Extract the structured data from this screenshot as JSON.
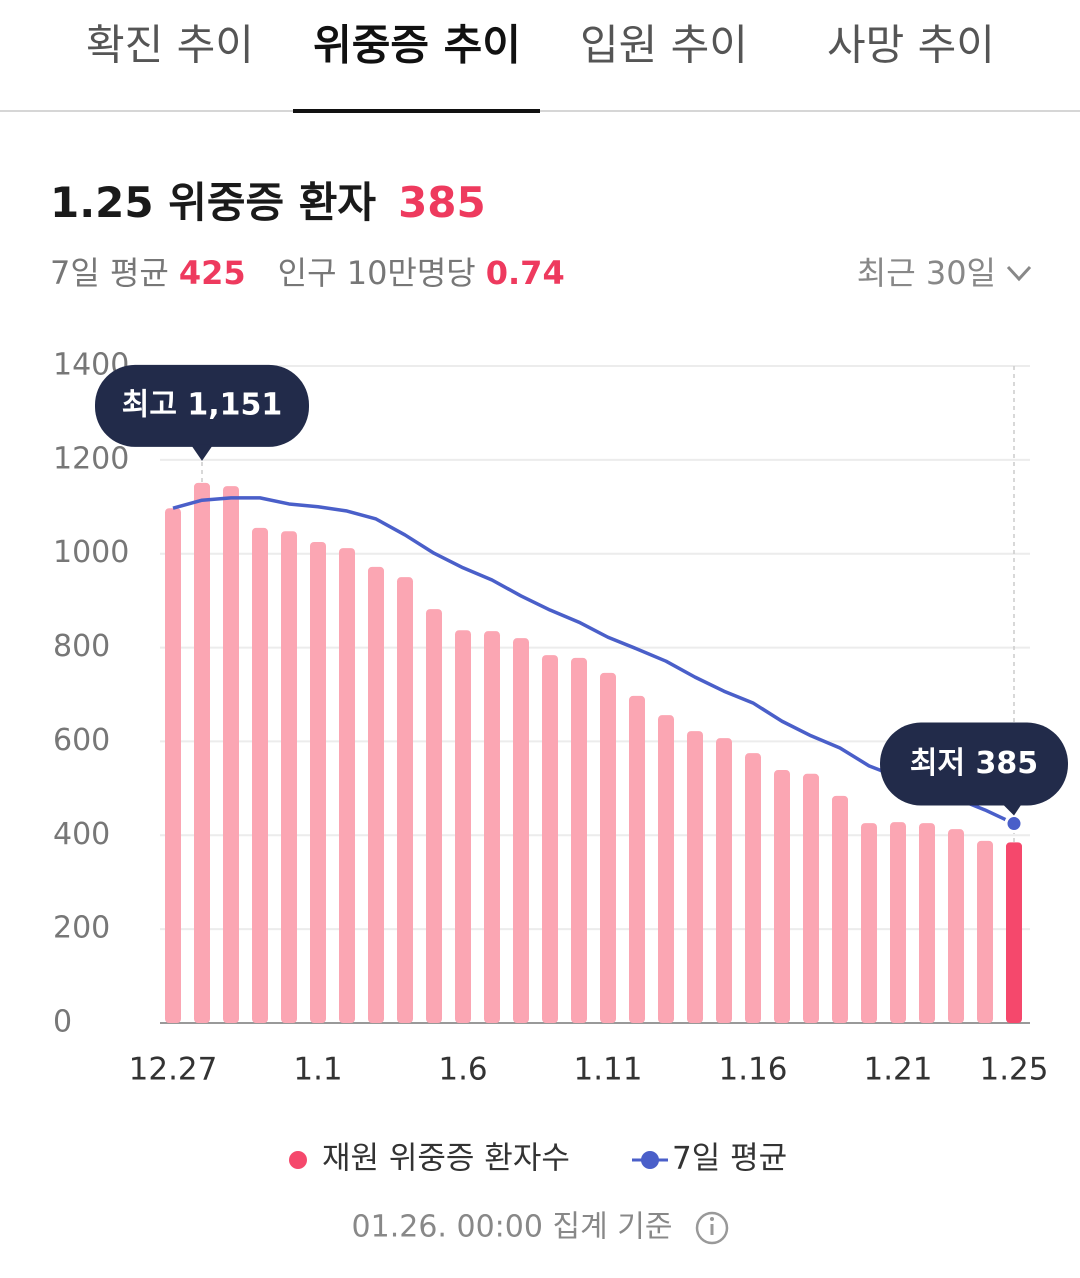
{
  "tabs": [
    "확진 추이",
    "위중증 추이",
    "입원 추이",
    "사망 추이"
  ],
  "header": {
    "title": "1.25 위중증 환자",
    "value": "385",
    "avg_label": "7일 평균",
    "avg_value": "425",
    "per_label": "인구 10만명당",
    "per_value": "0.74",
    "range": "최근 30일"
  },
  "chart_data": {
    "type": "combo",
    "categories": [
      "12.27",
      null,
      null,
      null,
      null,
      "1.1",
      null,
      null,
      null,
      null,
      "1.6",
      null,
      null,
      null,
      null,
      "1.11",
      null,
      null,
      null,
      null,
      "1.16",
      null,
      null,
      null,
      null,
      "1.21",
      null,
      null,
      null,
      "1.25"
    ],
    "series": [
      {
        "name": "재원 위중증 환자수",
        "color": "#fba6b3",
        "highlight_color": "#f5486c",
        "values": [
          1097,
          1151,
          1144,
          1055,
          1048,
          1025,
          1012,
          972,
          950,
          882,
          837,
          835,
          820,
          784,
          778,
          746,
          697,
          656,
          622,
          607,
          575,
          539,
          531,
          484,
          426,
          428,
          426,
          413,
          388,
          385
        ]
      },
      {
        "name": "7일 평균",
        "color": "#4a5fc9",
        "values": [
          1097,
          1114,
          1119,
          1119,
          1106,
          1100,
          1091,
          1074,
          1040,
          1001,
          970,
          944,
          910,
          880,
          854,
          822,
          797,
          771,
          737,
          707,
          682,
          643,
          612,
          586,
          548,
          524,
          503,
          479,
          454,
          425
        ]
      }
    ],
    "annotations": [
      "최고 1,151",
      "최저 385"
    ],
    "ylim": [
      0,
      1400
    ],
    "yticks": [
      0,
      200,
      400,
      600,
      800,
      1000,
      1200,
      1400
    ],
    "grid": true
  },
  "footer": "01.26. 00:00 집계 기준"
}
